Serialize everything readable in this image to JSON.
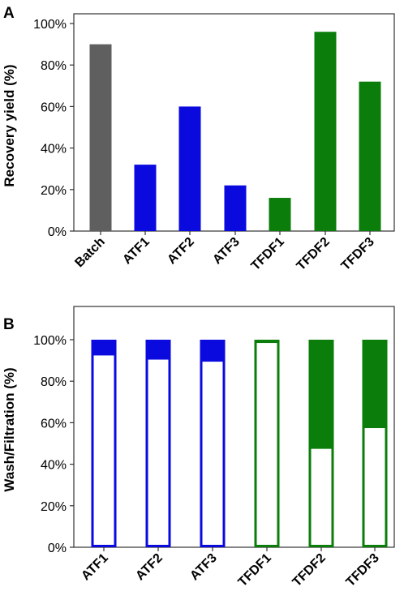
{
  "chart_data": [
    {
      "panel": "A",
      "type": "bar",
      "ylabel": "Recovery yield (%)",
      "ylim": [
        0,
        100
      ],
      "yticks": [
        "0%",
        "20%",
        "40%",
        "60%",
        "80%",
        "100%"
      ],
      "categories": [
        "Batch",
        "ATF1",
        "ATF2",
        "ATF3",
        "TFDF1",
        "TFDF2",
        "TFDF3"
      ],
      "values": [
        90,
        32,
        60,
        22,
        16,
        96,
        72
      ],
      "colors": [
        "#5f5f5f",
        "#0a0adf",
        "#0a0adf",
        "#0a0adf",
        "#0a7d0a",
        "#0a7d0a",
        "#0a7d0a"
      ]
    },
    {
      "panel": "B",
      "type": "bar",
      "stacked": true,
      "ylabel": "Wash/Filtration (%)",
      "ylim": [
        0,
        100
      ],
      "yticks": [
        "0%",
        "20%",
        "40%",
        "60%",
        "80%",
        "100%"
      ],
      "categories": [
        "ATF1",
        "ATF2",
        "ATF3",
        "TFDF1",
        "TFDF2",
        "TFDF3"
      ],
      "series": [
        {
          "fill": "open",
          "values": [
            93,
            91,
            90,
            99,
            48,
            58
          ]
        },
        {
          "fill": "solid",
          "values": [
            7,
            9,
            10,
            1,
            52,
            42
          ]
        }
      ],
      "colors": [
        "#0a0adf",
        "#0a0adf",
        "#0a0adf",
        "#0a7d0a",
        "#0a7d0a",
        "#0a7d0a"
      ]
    }
  ]
}
